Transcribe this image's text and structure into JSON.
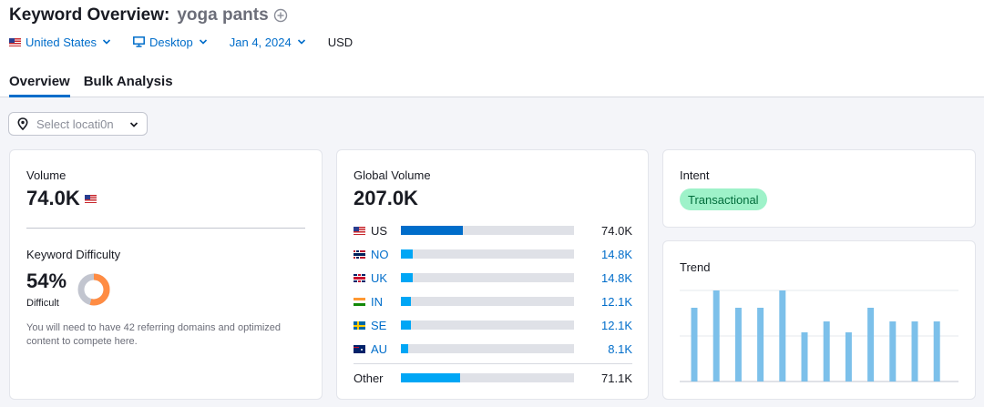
{
  "header": {
    "title": "Keyword Overview:",
    "keyword": "yoga pants",
    "filters": {
      "country": "United States",
      "device": "Desktop",
      "date": "Jan 4, 2024",
      "currency": "USD"
    },
    "tabs": [
      {
        "label": "Overview",
        "active": true
      },
      {
        "label": "Bulk Analysis",
        "active": false
      }
    ]
  },
  "location_select": {
    "placeholder": "Select locati0n"
  },
  "volume_card": {
    "label": "Volume",
    "value": "74.0K",
    "kd_label": "Keyword Difficulty",
    "kd_value": "54%",
    "kd_level": "Difficult",
    "kd_percent": 54,
    "kd_color": "#ff8c43",
    "kd_description": "You will need to have 42 referring domains and optimized content to compete here."
  },
  "global_card": {
    "label": "Global Volume",
    "value": "207.0K",
    "countries": [
      {
        "code": "US",
        "value": "74.0K",
        "share": 0.36,
        "flag": "flag-us",
        "link": false
      },
      {
        "code": "NO",
        "value": "14.8K",
        "share": 0.07,
        "flag": "flag-no",
        "link": true
      },
      {
        "code": "UK",
        "value": "14.8K",
        "share": 0.07,
        "flag": "flag-uk",
        "link": true
      },
      {
        "code": "IN",
        "value": "12.1K",
        "share": 0.058,
        "flag": "flag-in",
        "link": true
      },
      {
        "code": "SE",
        "value": "12.1K",
        "share": 0.058,
        "flag": "flag-se",
        "link": true
      },
      {
        "code": "AU",
        "value": "8.1K",
        "share": 0.04,
        "flag": "flag-au",
        "link": true
      }
    ],
    "other": {
      "code": "Other",
      "value": "71.1K",
      "share": 0.34
    },
    "colors": {
      "primary": "#006dca",
      "secondary": "#00a6f5",
      "track": "#dfe1e7"
    }
  },
  "intent_card": {
    "label": "Intent",
    "value": "Transactional"
  },
  "trend_card": {
    "label": "Trend"
  },
  "chart_data": {
    "type": "bar",
    "title": "Trend",
    "values": [
      0.81,
      1.0,
      0.81,
      0.81,
      1.0,
      0.54,
      0.66,
      0.54,
      0.81,
      0.66,
      0.66,
      0.66
    ],
    "ylim": [
      0,
      1
    ],
    "grid": true,
    "color": "#7cc0ea"
  }
}
